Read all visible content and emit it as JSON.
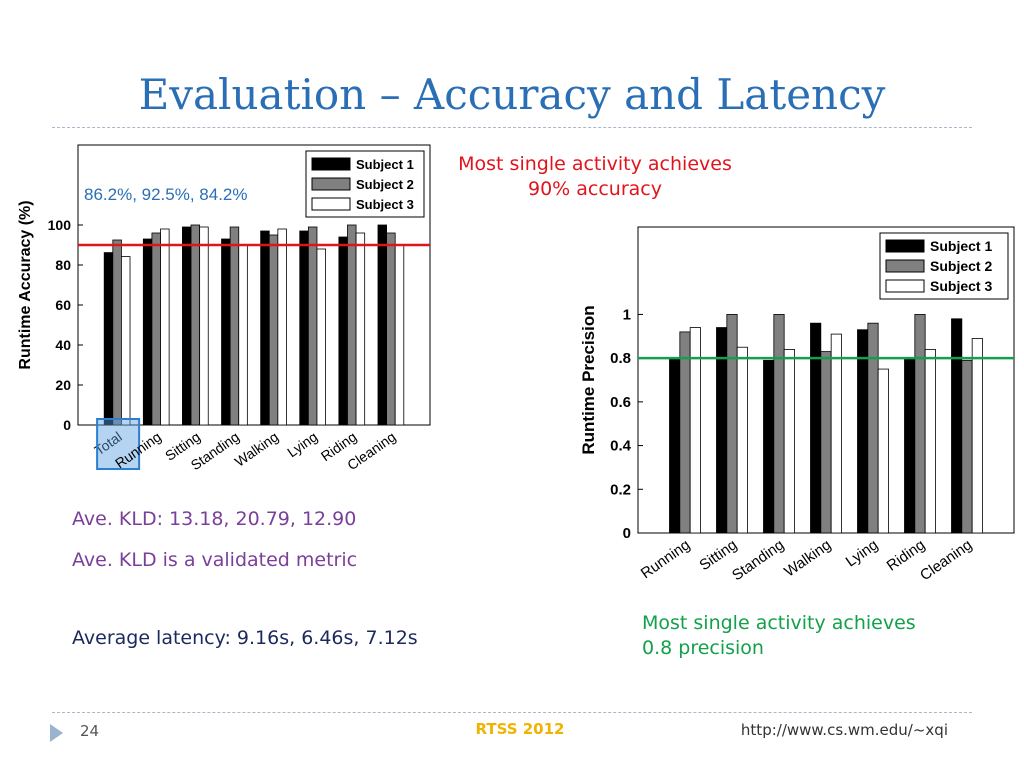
{
  "slide": {
    "title": "Evaluation – Accuracy and Latency",
    "accuracy_note": "86.2%, 92.5%, 84.2%",
    "red_note_line1": "Most single activity achieves",
    "red_note_line2": "90% accuracy",
    "green_note_line1": "Most single activity achieves",
    "green_note_line2": "0.8 precision",
    "kld_values": "Ave. KLD: 13.18,  20.79,  12.90",
    "kld_note": "Ave. KLD is a validated metric",
    "latency": "Average latency: 9.16s, 6.46s, 7.12s",
    "footer": {
      "page_number": "24",
      "conference": "RTSS 2012",
      "url": "http://www.cs.wm.edu/~xqi"
    },
    "colors": {
      "title": "#2a6fb5",
      "red_note": "#e2141b",
      "green_note": "#12a14a",
      "kld_text": "#7a3f9a",
      "latency_text": "#1a2a5e",
      "conference": "#f0b400",
      "highlight_box": "#2a7fd0"
    }
  },
  "chart_data": [
    {
      "type": "bar",
      "ylabel": "Runtime Accuracy (%)",
      "ylim": [
        0,
        140
      ],
      "yticks": [
        0,
        20,
        40,
        60,
        80,
        100
      ],
      "categories": [
        "Total",
        "Running",
        "Sitting",
        "Standing",
        "Walking",
        "Lying",
        "Riding",
        "Cleaning"
      ],
      "highlighted_category": "Total",
      "series": [
        {
          "name": "Subject 1",
          "color": "#000000",
          "values": [
            86.2,
            93,
            99,
            93,
            97,
            97,
            94,
            100
          ]
        },
        {
          "name": "Subject 2",
          "color": "#808080",
          "values": [
            92.5,
            96,
            100,
            99,
            95,
            99,
            100,
            96
          ]
        },
        {
          "name": "Subject 3",
          "color": "#ffffff",
          "values": [
            84.2,
            98,
            99,
            90,
            98,
            88,
            96,
            90
          ]
        }
      ],
      "reference_line": {
        "value": 90,
        "color": "#e2141b"
      },
      "legend": "top-right",
      "grid": false
    },
    {
      "type": "bar",
      "ylabel": "Runtime Precision",
      "ylim": [
        0,
        1.4
      ],
      "yticks": [
        0,
        0.2,
        0.4,
        0.6,
        0.8,
        1
      ],
      "categories": [
        "Running",
        "Sitting",
        "Standing",
        "Walking",
        "Lying",
        "Riding",
        "Cleaning"
      ],
      "series": [
        {
          "name": "Subject 1",
          "color": "#000000",
          "values": [
            0.8,
            0.94,
            0.79,
            0.96,
            0.93,
            0.8,
            0.98
          ]
        },
        {
          "name": "Subject 2",
          "color": "#808080",
          "values": [
            0.92,
            1.0,
            1.0,
            0.83,
            0.96,
            1.0,
            0.79
          ]
        },
        {
          "name": "Subject 3",
          "color": "#ffffff",
          "values": [
            0.94,
            0.85,
            0.84,
            0.91,
            0.75,
            0.84,
            0.89
          ]
        }
      ],
      "reference_line": {
        "value": 0.8,
        "color": "#12a14a"
      },
      "legend": "top-right",
      "grid": false
    }
  ]
}
